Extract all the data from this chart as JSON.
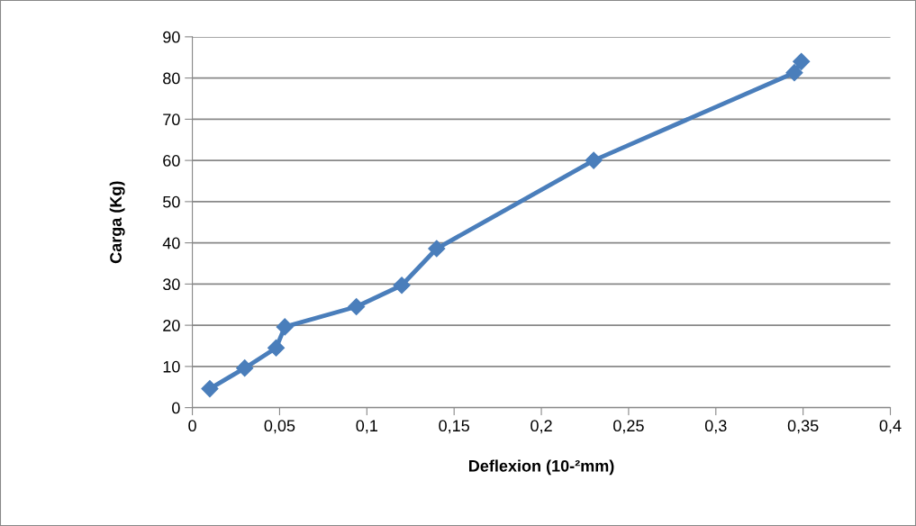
{
  "chart_data": {
    "type": "line",
    "xlabel": "Deflexion (10-²mm)",
    "ylabel": "Carga (Kg)",
    "series": [
      {
        "color": "#4a7ebb",
        "x": [
          0.01,
          0.03,
          0.048,
          0.053,
          0.094,
          0.12,
          0.14,
          0.23,
          0.345,
          0.349
        ],
        "values": [
          4.6,
          9.6,
          14.5,
          19.6,
          24.5,
          29.7,
          38.6,
          60.0,
          81.3,
          84.0
        ]
      }
    ],
    "xlim": [
      0,
      0.4
    ],
    "xticks": [
      0,
      {
        "value": 0.05,
        "label": "0,05"
      },
      {
        "value": 0.1,
        "label": "0,1"
      },
      {
        "value": 0.15,
        "label": "0,15"
      },
      {
        "value": 0.2,
        "label": "0,2"
      },
      {
        "value": 0.25,
        "label": "0,25"
      },
      {
        "value": 0.3,
        "label": "0,3"
      },
      {
        "value": 0.35,
        "label": "0,35"
      },
      {
        "value": 0.4,
        "label": "0,4"
      }
    ],
    "ylim": [
      0,
      90
    ],
    "yticks": [
      0,
      10,
      20,
      30,
      40,
      50,
      60,
      70,
      80,
      90
    ],
    "grid": "y",
    "marker": "diamond",
    "line_style": "solid"
  }
}
